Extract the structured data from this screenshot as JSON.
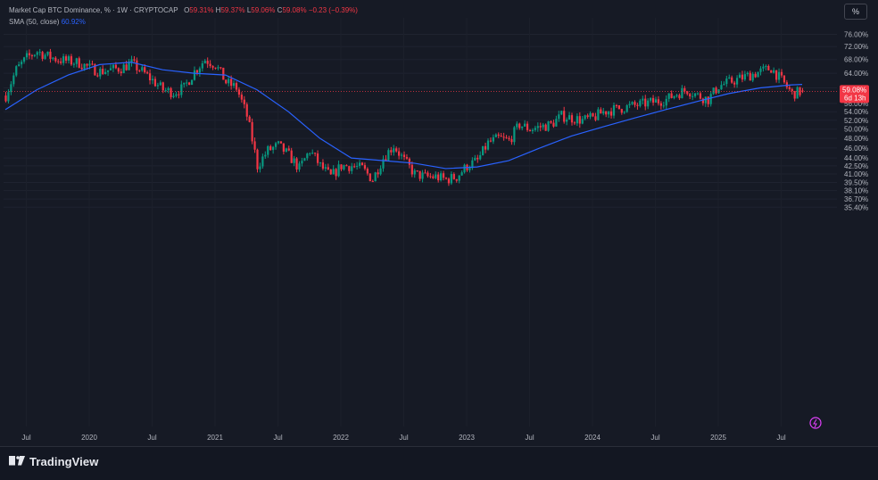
{
  "legend": {
    "title": "Market Cap BTC Dominance, % · 1W · CRYPTOCAP",
    "o_label": "O",
    "o_value": "59.31%",
    "h_label": "H",
    "h_value": "59.37%",
    "l_label": "L",
    "l_value": "59.06%",
    "c_label": "C",
    "c_value": "59.08%",
    "change": "−0.23 (−0.39%)",
    "sma_label": "SMA (50, close)",
    "sma_value": "60.92%"
  },
  "toolbar": {
    "percent_button": "%"
  },
  "price_badge": {
    "price": "59.08%",
    "countdown": "6d 13h"
  },
  "footer": {
    "brand": "TradingView"
  },
  "colors": {
    "up": "#089981",
    "down": "#f23645",
    "sma": "#2962ff",
    "bg": "#161a25"
  },
  "chart_data": {
    "type": "candlestick",
    "title": "Market Cap BTC Dominance, % · 1W · CRYPTOCAP",
    "scale": "log",
    "y_ticks": [
      "76.00%",
      "72.00%",
      "68.00%",
      "64.00%",
      "60.00%",
      "56.00%",
      "54.00%",
      "52.00%",
      "50.00%",
      "48.00%",
      "46.00%",
      "44.00%",
      "42.50%",
      "41.00%",
      "39.50%",
      "38.10%",
      "36.70%",
      "35.40%"
    ],
    "x_ticks": [
      "Jul",
      "2020",
      "Jul",
      "2021",
      "Jul",
      "2022",
      "Jul",
      "2023",
      "Jul",
      "2024",
      "Jul",
      "2025",
      "Jul"
    ],
    "x_range": [
      "2019-05",
      "2025-09"
    ],
    "last": {
      "open": 59.31,
      "high": 59.37,
      "low": 59.06,
      "close": 59.08
    },
    "trend_closes": [
      [
        "2019-05",
        58.0
      ],
      [
        "2019-06",
        65.0
      ],
      [
        "2019-07",
        68.5
      ],
      [
        "2019-08",
        70.5
      ],
      [
        "2019-09",
        69.0
      ],
      [
        "2019-10",
        68.0
      ],
      [
        "2019-11",
        67.5
      ],
      [
        "2019-12",
        67.0
      ],
      [
        "2020-01",
        65.5
      ],
      [
        "2020-02",
        64.5
      ],
      [
        "2020-03",
        65.0
      ],
      [
        "2020-04",
        65.5
      ],
      [
        "2020-05",
        66.8
      ],
      [
        "2020-06",
        64.5
      ],
      [
        "2020-07",
        62.0
      ],
      [
        "2020-08",
        59.5
      ],
      [
        "2020-09",
        58.8
      ],
      [
        "2020-10",
        60.0
      ],
      [
        "2020-11",
        64.5
      ],
      [
        "2020-12",
        68.0
      ],
      [
        "2021-01",
        66.5
      ],
      [
        "2021-02",
        61.5
      ],
      [
        "2021-03",
        60.0
      ],
      [
        "2021-04",
        53.0
      ],
      [
        "2021-05",
        42.5
      ],
      [
        "2021-06",
        45.5
      ],
      [
        "2021-07",
        46.5
      ],
      [
        "2021-08",
        44.5
      ],
      [
        "2021-09",
        42.0
      ],
      [
        "2021-10",
        45.5
      ],
      [
        "2021-11",
        42.5
      ],
      [
        "2021-12",
        40.5
      ],
      [
        "2022-01",
        42.5
      ],
      [
        "2022-02",
        42.5
      ],
      [
        "2022-03",
        42.0
      ],
      [
        "2022-04",
        40.0
      ],
      [
        "2022-05",
        44.0
      ],
      [
        "2022-06",
        46.5
      ],
      [
        "2022-07",
        43.5
      ],
      [
        "2022-08",
        41.0
      ],
      [
        "2022-09",
        40.5
      ],
      [
        "2022-10",
        40.5
      ],
      [
        "2022-11",
        40.0
      ],
      [
        "2022-12",
        40.5
      ],
      [
        "2023-01",
        42.5
      ],
      [
        "2023-02",
        43.5
      ],
      [
        "2023-03",
        47.0
      ],
      [
        "2023-04",
        48.0
      ],
      [
        "2023-05",
        47.5
      ],
      [
        "2023-06",
        51.0
      ],
      [
        "2023-07",
        50.0
      ],
      [
        "2023-08",
        50.5
      ],
      [
        "2023-09",
        51.0
      ],
      [
        "2023-10",
        53.0
      ],
      [
        "2023-11",
        52.5
      ],
      [
        "2023-12",
        52.0
      ],
      [
        "2024-01",
        52.5
      ],
      [
        "2024-02",
        54.0
      ],
      [
        "2024-03",
        54.5
      ],
      [
        "2024-04",
        55.0
      ],
      [
        "2024-05",
        55.5
      ],
      [
        "2024-06",
        56.0
      ],
      [
        "2024-07",
        56.5
      ],
      [
        "2024-08",
        57.0
      ],
      [
        "2024-09",
        58.5
      ],
      [
        "2024-10",
        59.5
      ],
      [
        "2024-11",
        58.0
      ],
      [
        "2024-12",
        57.0
      ],
      [
        "2025-01",
        60.5
      ],
      [
        "2025-02",
        61.5
      ],
      [
        "2025-03",
        62.5
      ],
      [
        "2025-04",
        63.5
      ],
      [
        "2025-05",
        64.5
      ],
      [
        "2025-06",
        65.5
      ],
      [
        "2025-07",
        62.0
      ],
      [
        "2025-08",
        58.5
      ],
      [
        "2025-09",
        59.08
      ]
    ],
    "sma_50": [
      [
        "2019-05",
        54.5
      ],
      [
        "2019-08",
        59.5
      ],
      [
        "2019-11",
        63.5
      ],
      [
        "2020-02",
        66.5
      ],
      [
        "2020-05",
        67.2
      ],
      [
        "2020-08",
        65.0
      ],
      [
        "2020-11",
        64.0
      ],
      [
        "2021-02",
        63.5
      ],
      [
        "2021-05",
        59.5
      ],
      [
        "2021-08",
        54.0
      ],
      [
        "2021-11",
        48.0
      ],
      [
        "2022-02",
        44.0
      ],
      [
        "2022-05",
        43.5
      ],
      [
        "2022-08",
        43.0
      ],
      [
        "2022-11",
        42.0
      ],
      [
        "2023-02",
        42.3
      ],
      [
        "2023-05",
        43.5
      ],
      [
        "2023-08",
        46.0
      ],
      [
        "2023-11",
        48.5
      ],
      [
        "2024-02",
        50.5
      ],
      [
        "2024-05",
        52.5
      ],
      [
        "2024-08",
        54.5
      ],
      [
        "2024-11",
        56.5
      ],
      [
        "2025-02",
        58.5
      ],
      [
        "2025-05",
        60.0
      ],
      [
        "2025-08",
        60.8
      ],
      [
        "2025-09",
        60.92
      ]
    ],
    "marker_price": 59.08
  }
}
